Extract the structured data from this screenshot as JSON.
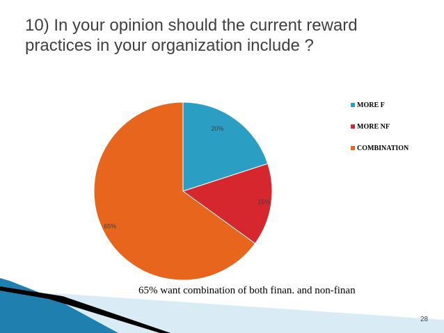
{
  "slide": {
    "title": "10) In your opinion should the current reward practices in your organization include ?",
    "caption": "65%  want combination of both finan. and non-finan",
    "page_number": "28"
  },
  "chart_data": {
    "type": "pie",
    "title": "",
    "legend_position": "right",
    "slices": [
      {
        "name": "MORE F",
        "value": 20,
        "label": "20%",
        "color": "#2b9ec4"
      },
      {
        "name": "MORE NF",
        "value": 15,
        "label": "15%",
        "color": "#d6262e"
      },
      {
        "name": "COMBINATION",
        "value": 65,
        "label": "65%",
        "color": "#e8651e"
      }
    ]
  },
  "colors": {
    "title_text": "#404040",
    "deco_blue": "#1f80b0",
    "deco_light": "#cfe6f1",
    "deco_black": "#000000"
  }
}
